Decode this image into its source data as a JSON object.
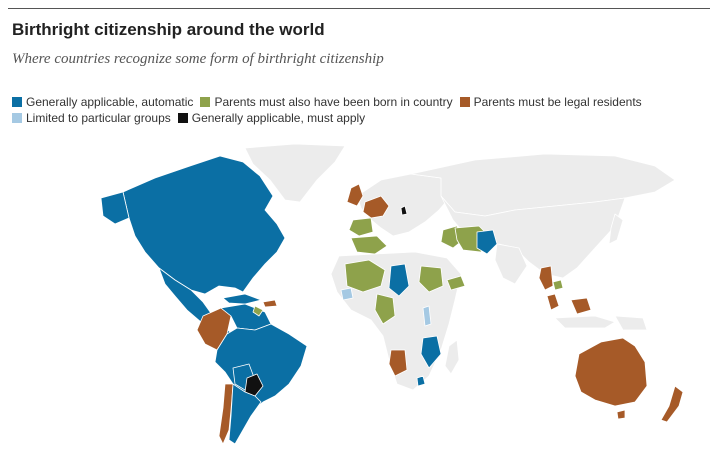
{
  "title": "Birthright citizenship around the world",
  "subtitle": "Where countries recognize some form of birthright citizenship",
  "legend": [
    {
      "label": "Generally applicable, automatic",
      "color": "#0b6fa4",
      "icon": "legend-swatch-automatic"
    },
    {
      "label": "Parents must also have been born in country",
      "color": "#8ea24b",
      "icon": "legend-swatch-born"
    },
    {
      "label": "Parents must be legal residents",
      "color": "#a65a28",
      "icon": "legend-swatch-residents"
    },
    {
      "label": "Limited to particular groups",
      "color": "#a5c9e3",
      "icon": "legend-swatch-limited"
    },
    {
      "label": "Generally applicable, must apply",
      "color": "#111111",
      "icon": "legend-swatch-must-apply"
    }
  ],
  "colors": {
    "no_birthright": "#ececec",
    "border": "#ffffff"
  }
}
